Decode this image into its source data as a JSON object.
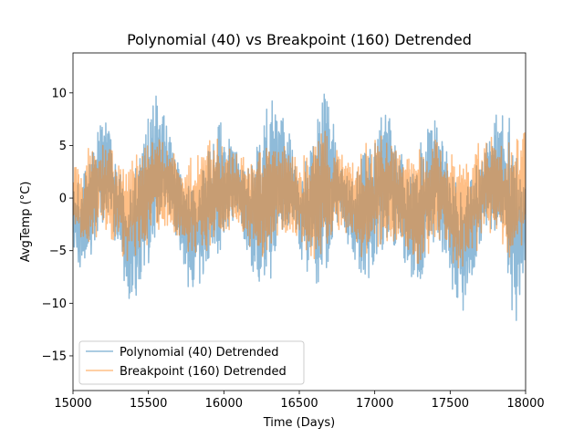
{
  "chart_data": {
    "type": "line",
    "title": "Polynomial (40) vs Breakpoint (160) Detrended",
    "xlabel": "Time (Days)",
    "ylabel": "AvgTemp (°C)",
    "xlim": [
      15000,
      18000
    ],
    "ylim": [
      -18.3,
      13.8
    ],
    "xticks": [
      15000,
      15500,
      16000,
      16500,
      17000,
      17500,
      18000
    ],
    "yticks": [
      -15,
      -10,
      -5,
      0,
      5,
      10
    ],
    "grid": false,
    "legend_position": "lower-left",
    "series": [
      {
        "name": "Polynomial (40) Detrended",
        "color": "#1f77b4",
        "alpha": 0.5,
        "envelope": {
          "x": [
            15000,
            15060,
            15120,
            15180,
            15240,
            15300,
            15360,
            15420,
            15480,
            15540,
            15600,
            15660,
            15720,
            15780,
            15840,
            15900,
            15960,
            16020,
            16080,
            16140,
            16200,
            16260,
            16320,
            16380,
            16440,
            16500,
            16560,
            16620,
            16680,
            16740,
            16800,
            16860,
            16920,
            16980,
            17040,
            17100,
            17160,
            17220,
            17280,
            17340,
            17400,
            17460,
            17520,
            17580,
            17640,
            17700,
            17760,
            17820,
            17880,
            17940,
            18000
          ],
          "upper": [
            1.5,
            2.5,
            4.5,
            7.5,
            8.0,
            4.0,
            0.5,
            3.0,
            7.5,
            10.4,
            9.0,
            6.0,
            3.0,
            1.5,
            3.0,
            6.0,
            7.5,
            6.5,
            5.0,
            3.0,
            4.0,
            8.0,
            10.2,
            9.0,
            6.0,
            2.5,
            5.0,
            8.0,
            11.5,
            6.0,
            2.0,
            3.0,
            4.5,
            6.0,
            8.0,
            8.5,
            6.0,
            3.0,
            4.0,
            7.0,
            8.5,
            6.0,
            3.0,
            0.5,
            2.0,
            4.0,
            6.0,
            9.0,
            9.5,
            5.0,
            2.0
          ],
          "lower": [
            -6.0,
            -7.5,
            -6.0,
            -3.0,
            -2.0,
            -6.0,
            -9.5,
            -10.2,
            -8.0,
            -5.0,
            -2.0,
            -3.0,
            -7.0,
            -9.0,
            -8.5,
            -7.0,
            -6.5,
            -4.0,
            -2.0,
            -4.5,
            -8.0,
            -9.5,
            -8.5,
            -6.0,
            -3.0,
            -5.0,
            -8.5,
            -9.5,
            -7.0,
            -3.0,
            -4.0,
            -6.0,
            -8.0,
            -7.5,
            -6.0,
            -4.0,
            -5.0,
            -7.0,
            -9.0,
            -8.0,
            -4.0,
            -6.0,
            -10.0,
            -11.3,
            -8.0,
            -5.0,
            -3.0,
            -4.0,
            -8.0,
            -13.4,
            -7.0
          ]
        },
        "x": [
          15000,
          15010,
          15020,
          15030,
          15040,
          15050,
          15060,
          15070,
          15080,
          15090,
          15100,
          15110,
          15120,
          15130,
          15140,
          15150,
          15160,
          15170,
          15180,
          15190,
          15200,
          15210,
          15220,
          15230,
          15240,
          15250,
          15260,
          15270,
          15280,
          15290,
          15300,
          15310,
          15320,
          15330,
          15340,
          15350,
          15360,
          15370,
          15380,
          15390,
          15400,
          15410,
          15420,
          15430,
          15440,
          15450,
          15460,
          15470,
          15480,
          15490,
          15500,
          15510,
          15520,
          15530,
          15540,
          15550,
          15560,
          15570,
          15580,
          15590,
          15600,
          15610,
          15620,
          15630,
          15640,
          15650,
          15660,
          15670,
          15680,
          15690,
          15700,
          15710,
          15720,
          15730,
          15740,
          15750,
          15760,
          15770,
          15780,
          15790,
          15800,
          15810,
          15820,
          15830,
          15840,
          15850,
          15860,
          15870,
          15880,
          15890,
          15900,
          15910,
          15920,
          15930,
          15940,
          15950,
          15960,
          15970,
          15980,
          15990,
          16000,
          16010,
          16020,
          16030,
          16040,
          16050,
          16060,
          16070,
          16080,
          16090,
          16100,
          16110,
          16120,
          16130,
          16140,
          16150,
          16160,
          16170,
          16180,
          16190,
          16200,
          16210,
          16220,
          16230,
          16240,
          16250,
          16260,
          16270,
          16280,
          16290,
          16300,
          16310,
          16320,
          16330,
          16340,
          16350,
          16360,
          16370,
          16380,
          16390,
          16400,
          16410,
          16420,
          16430,
          16440,
          16450,
          16460,
          16470,
          16480,
          16490,
          16500,
          16510,
          16520,
          16530,
          16540,
          16550,
          16560,
          16570,
          16580,
          16590,
          16600,
          16610,
          16620,
          16630,
          16640,
          16650,
          16660,
          16670,
          16680,
          16690,
          16700,
          16710,
          16720,
          16730,
          16740,
          16750,
          16760,
          16770,
          16780,
          16790,
          16800,
          16810,
          16820,
          16830,
          16840,
          16850,
          16860,
          16870,
          16880,
          16890,
          16900,
          16910,
          16920,
          16930,
          16940,
          16950,
          16960,
          16970,
          16980,
          16990,
          17000,
          17010,
          17020,
          17030,
          17040,
          17050,
          17060,
          17070,
          17080,
          17090,
          17100,
          17110,
          17120,
          17130,
          17140,
          17150,
          17160,
          17170,
          17180,
          17190,
          17200,
          17210,
          17220,
          17230,
          17240,
          17250,
          17260,
          17270,
          17280,
          17290,
          17300,
          17310,
          17320,
          17330,
          17340,
          17350,
          17360,
          17370,
          17380,
          17390,
          17400,
          17410,
          17420,
          17430,
          17440,
          17450,
          17460,
          17470,
          17480,
          17490,
          17500,
          17510,
          17520,
          17530,
          17540,
          17550,
          17560,
          17570,
          17580,
          17590,
          17600,
          17610,
          17620,
          17630,
          17640,
          17650,
          17660,
          17670,
          17680,
          17690,
          17700,
          17710,
          17720,
          17730,
          17740,
          17750,
          17760,
          17770,
          17780,
          17790,
          17800,
          17810,
          17820,
          17830,
          17840,
          17850,
          17860,
          17870,
          17880,
          17890,
          17900,
          17910,
          17920,
          17930,
          17940,
          17950,
          17960,
          17970,
          17980,
          17990,
          18000
        ]
      },
      {
        "name": "Breakpoint (160) Detrended",
        "color": "#ff7f0e",
        "alpha": 0.5,
        "envelope": {
          "x": [
            15000,
            15060,
            15120,
            15180,
            15240,
            15300,
            15360,
            15420,
            15480,
            15540,
            15600,
            15660,
            15720,
            15780,
            15840,
            15900,
            15960,
            16020,
            16080,
            16140,
            16200,
            16260,
            16320,
            16380,
            16440,
            16500,
            16560,
            16620,
            16680,
            16740,
            16800,
            16860,
            16920,
            16980,
            17040,
            17100,
            17160,
            17220,
            17280,
            17340,
            17400,
            17460,
            17520,
            17580,
            17640,
            17700,
            17760,
            17820,
            17880,
            17940,
            18000
          ],
          "upper": [
            4.0,
            3.5,
            5.5,
            6.0,
            5.5,
            4.0,
            3.0,
            4.5,
            6.0,
            6.5,
            5.5,
            4.5,
            3.5,
            4.0,
            5.0,
            6.0,
            6.0,
            5.0,
            4.5,
            4.0,
            4.0,
            5.5,
            6.0,
            5.5,
            4.5,
            4.0,
            4.5,
            6.0,
            6.5,
            5.0,
            4.0,
            4.0,
            5.0,
            6.0,
            6.5,
            5.5,
            5.0,
            4.0,
            4.5,
            5.0,
            6.0,
            5.0,
            4.5,
            3.5,
            4.5,
            5.5,
            6.0,
            6.0,
            5.5,
            6.0,
            6.8
          ],
          "lower": [
            -3.0,
            -5.0,
            -4.5,
            -3.5,
            -3.5,
            -5.0,
            -6.5,
            -6.0,
            -5.0,
            -4.0,
            -3.0,
            -3.5,
            -5.0,
            -6.0,
            -5.5,
            -5.0,
            -4.5,
            -3.5,
            -3.0,
            -4.0,
            -5.5,
            -6.0,
            -5.5,
            -4.0,
            -3.0,
            -4.5,
            -6.0,
            -6.5,
            -5.0,
            -3.0,
            -3.5,
            -5.0,
            -6.0,
            -5.5,
            -5.0,
            -4.0,
            -4.5,
            -5.5,
            -6.5,
            -6.0,
            -4.0,
            -5.0,
            -7.0,
            -7.0,
            -6.0,
            -4.5,
            -3.5,
            -4.0,
            -6.0,
            -7.0,
            -4.0
          ]
        }
      }
    ]
  },
  "legend": {
    "items": [
      {
        "label": "Polynomial (40) Detrended",
        "color": "#1f77b4"
      },
      {
        "label": "Breakpoint (160) Detrended",
        "color": "#ff7f0e"
      }
    ]
  }
}
